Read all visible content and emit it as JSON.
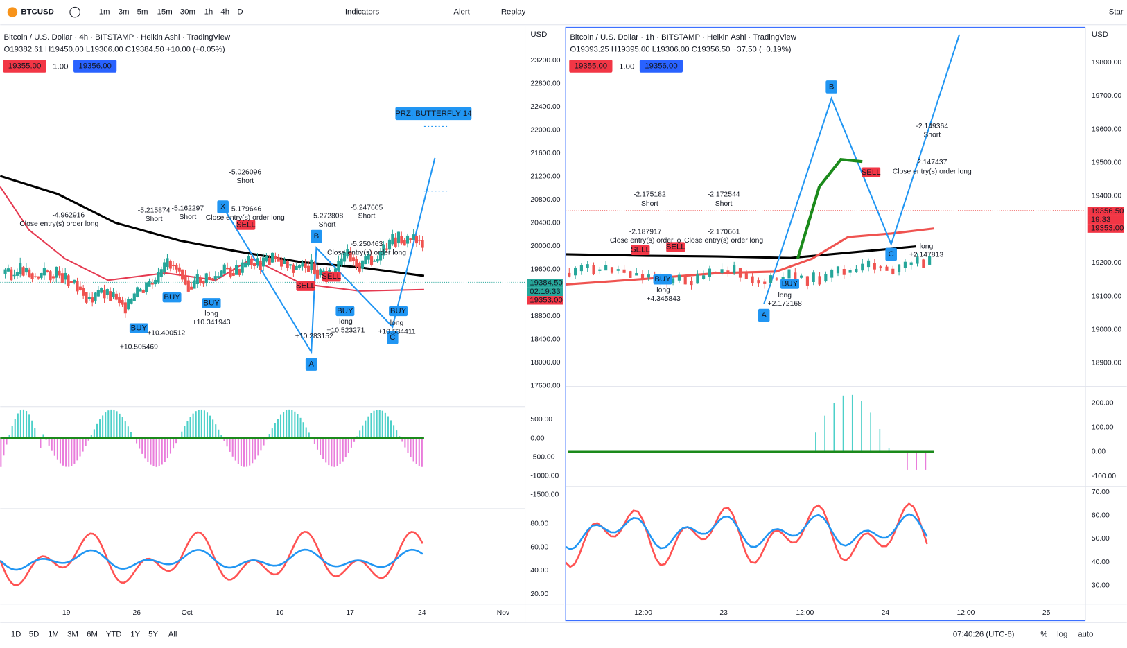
{
  "toolbar": {
    "symbol": "BTCUSD",
    "intervals": [
      "1m",
      "3m",
      "5m",
      "15m",
      "30m",
      "1h",
      "4h",
      "D"
    ],
    "indicators": "Indicators",
    "alert": "Alert",
    "replay": "Replay",
    "star": "Star"
  },
  "left_chart": {
    "title": "Bitcoin / U.S. Dollar · 4h · BITSTAMP · Heikin Ashi · TradingView",
    "ohlc": "O19382.61 H19450.00 L19306.00 C19384.50 +10.00 (+0.05%)",
    "sell_price": "19355.00",
    "quantity": "1.00",
    "buy_price": "19356.00",
    "currency": "USD",
    "price_ticks": [
      "23200.00",
      "22800.00",
      "22400.00",
      "22000.00",
      "21600.00",
      "21200.00",
      "20800.00",
      "20400.00",
      "20000.00",
      "19600.00",
      "19200.00",
      "18800.00",
      "18400.00",
      "18000.00",
      "17600.00"
    ],
    "osc_ticks": [
      "500.00",
      "0.00",
      "-500.00",
      "-1000.00",
      "-1500.00"
    ],
    "rsi_ticks": [
      "80.00",
      "60.00",
      "40.00",
      "20.00"
    ],
    "time_labels": [
      "19",
      "26",
      "Oct",
      "10",
      "17",
      "24",
      "Nov"
    ],
    "price_tags": [
      "19384.50",
      "02:19:33",
      "19353.00"
    ],
    "prz": "PRZ: BUTTERFLY 14",
    "points": [
      "X",
      "A",
      "B",
      "C"
    ],
    "signals": [
      "BUY",
      "BUY",
      "BUY",
      "BUY",
      "BUY",
      "SELL",
      "SELL",
      "SELL"
    ],
    "annotations": [
      "-5.026096",
      "Short",
      "-5.179646",
      "Close entry(s) order long",
      "-5.272808",
      "Short",
      "-5.247605",
      "Short",
      "-5.250463",
      "Close entry(s) order long",
      "-5.215874",
      "Short",
      "-5.162297",
      "Short",
      "long",
      "+10.341943",
      "long",
      "+10.523271",
      "long",
      "+10.534411",
      "+10.283152",
      "+10.400512",
      "+10.505469",
      "-4.962916",
      "Close entry(s) order long"
    ]
  },
  "right_chart": {
    "title": "Bitcoin / U.S. Dollar · 1h · BITSTAMP · Heikin Ashi · TradingView",
    "ohlc": "O19393.25 H19395.00 L19306.00 C19356.50 −37.50 (−0.19%)",
    "sell_price": "19355.00",
    "quantity": "1.00",
    "buy_price": "19356.00",
    "currency": "USD",
    "price_ticks": [
      "19800.00",
      "19700.00",
      "19600.00",
      "19500.00",
      "19400.00",
      "19300.00",
      "19200.00",
      "19100.00",
      "19000.00",
      "18900.00"
    ],
    "osc_ticks": [
      "200.00",
      "100.00",
      "0.00",
      "-100.00"
    ],
    "rsi_ticks": [
      "70.00",
      "60.00",
      "50.00",
      "40.00",
      "30.00"
    ],
    "time_labels": [
      "12:00",
      "23",
      "12:00",
      "24",
      "12:00",
      "25"
    ],
    "price_tags": [
      "19356.50",
      "19:33",
      "19353.00"
    ],
    "points": [
      "B",
      "A",
      "C"
    ],
    "signals": [
      "SELL",
      "SELL",
      "SELL",
      "BUY",
      "BUY"
    ],
    "annotations": [
      "-2.175182",
      "Short",
      "-2.187917",
      "Close entry(s) order lo",
      "-2.172544",
      "Short",
      "-2.170661",
      "Close entry(s) order long",
      "-2.149364",
      "Short",
      "2.147437",
      "Close entry(s) order long",
      "long",
      "+4.345843",
      "long",
      "+2.172168",
      "long",
      "+2.147813"
    ]
  },
  "bottom_bar": {
    "ranges": [
      "1D",
      "5D",
      "1M",
      "3M",
      "6M",
      "YTD",
      "1Y",
      "5Y",
      "All"
    ],
    "clock": "07:40:26 (UTC-6)",
    "percent": "%",
    "log": "log",
    "auto": "auto"
  }
}
